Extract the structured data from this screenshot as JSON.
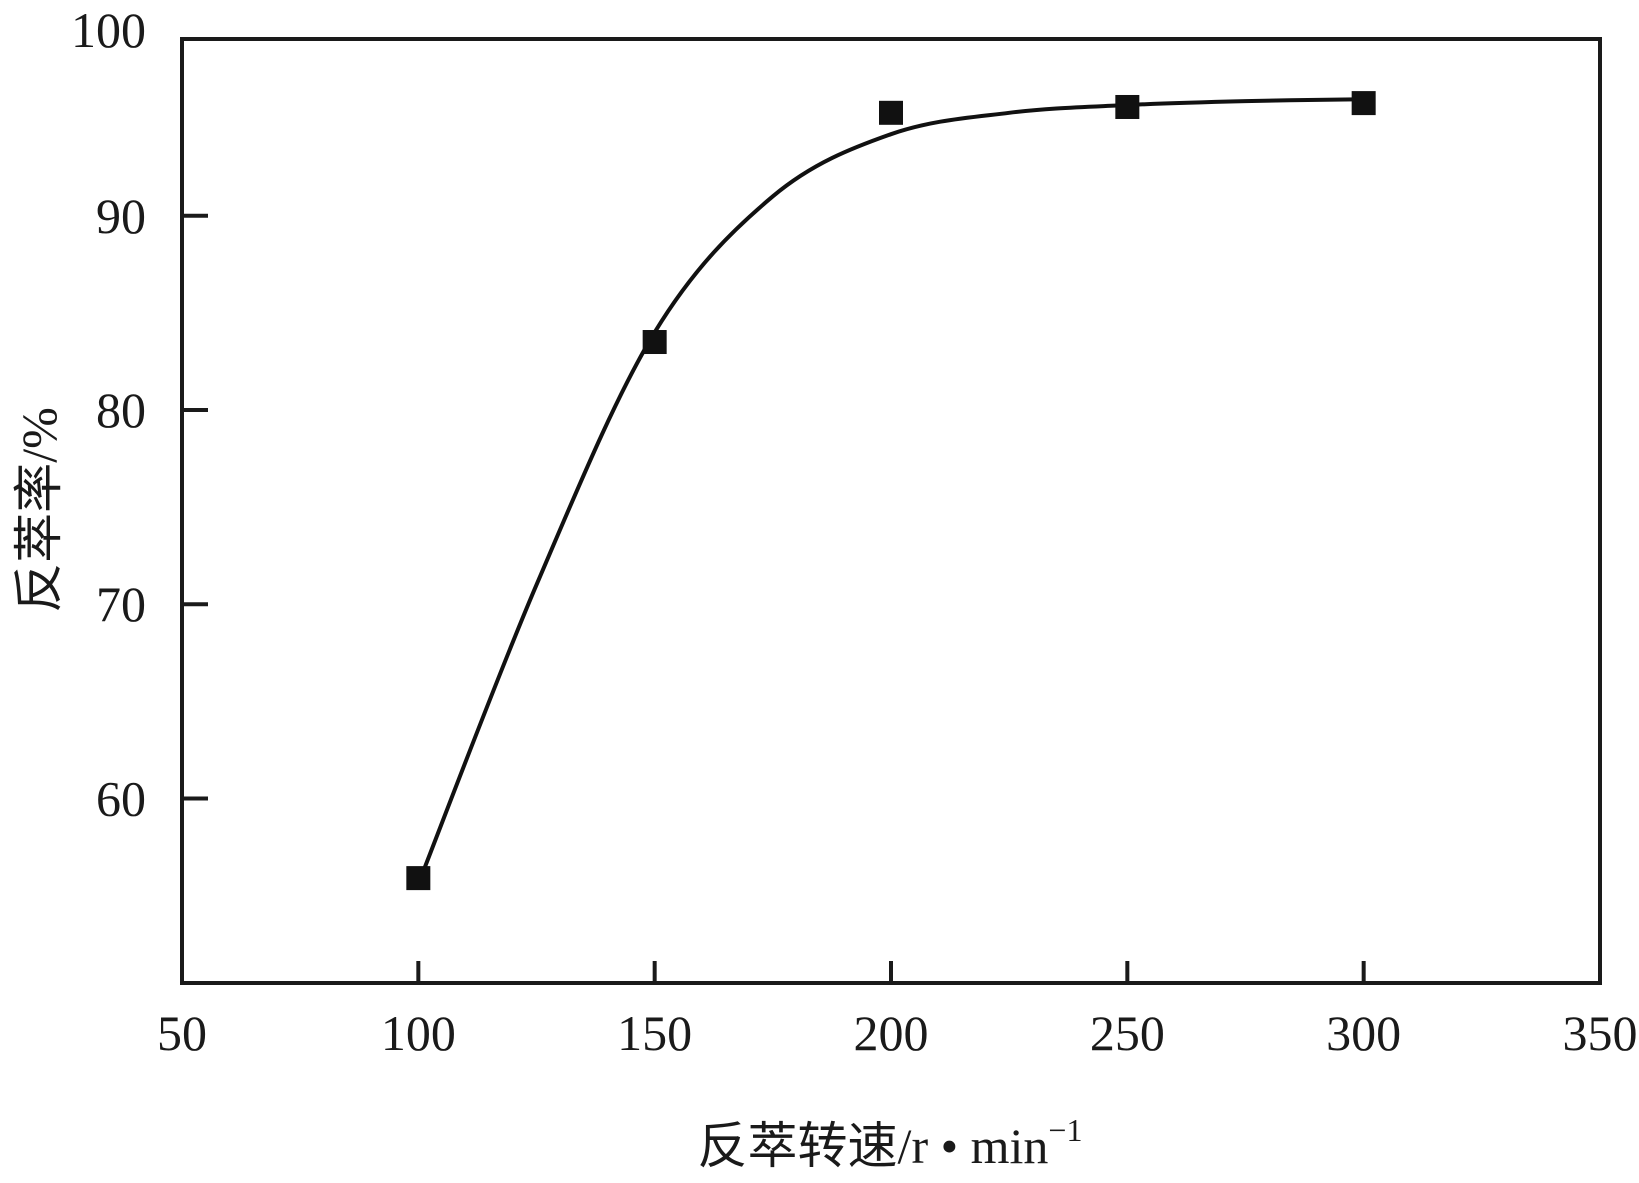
{
  "chart_data": {
    "type": "scatter",
    "title": "",
    "xlabel": "反萃转速/r • min",
    "xlabel_superscript": "−1",
    "ylabel": "反萃率/%",
    "xlim": [
      50,
      350
    ],
    "ylim": [
      50.5,
      99.1
    ],
    "xticks": [
      50,
      100,
      150,
      200,
      250,
      300,
      350
    ],
    "yticks": [
      60,
      70,
      80,
      90,
      100
    ],
    "grid": false,
    "marker_color": "#111111",
    "line_color": "#111111",
    "series": [
      {
        "type": "scatter",
        "marker": "square",
        "x": [
          100,
          150,
          200,
          250,
          300
        ],
        "y": [
          55.9,
          83.5,
          95.3,
          95.6,
          95.8
        ]
      },
      {
        "type": "line",
        "smooth": true,
        "x": [
          100,
          125,
          150,
          175,
          200,
          225,
          250,
          275,
          300
        ],
        "y": [
          55.6,
          71.0,
          84.0,
          91.0,
          94.2,
          95.3,
          95.7,
          95.9,
          96.0
        ]
      }
    ]
  }
}
